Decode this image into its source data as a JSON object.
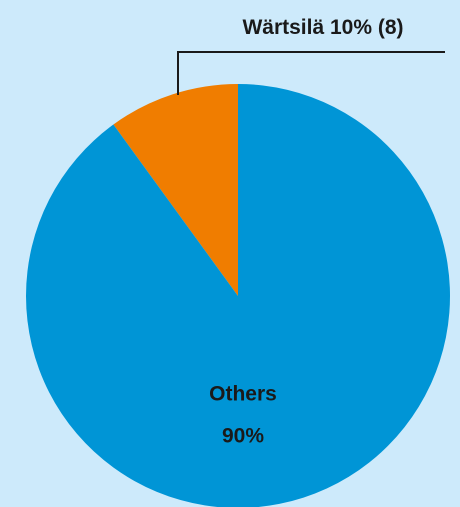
{
  "chart_data": {
    "type": "pie",
    "categories": [
      "Wärtsilä",
      "Others"
    ],
    "values": [
      10,
      90
    ],
    "value_labels": [
      "10% (8)",
      "90%"
    ],
    "colors": [
      "#f07d00",
      "#0095d6"
    ]
  }
}
